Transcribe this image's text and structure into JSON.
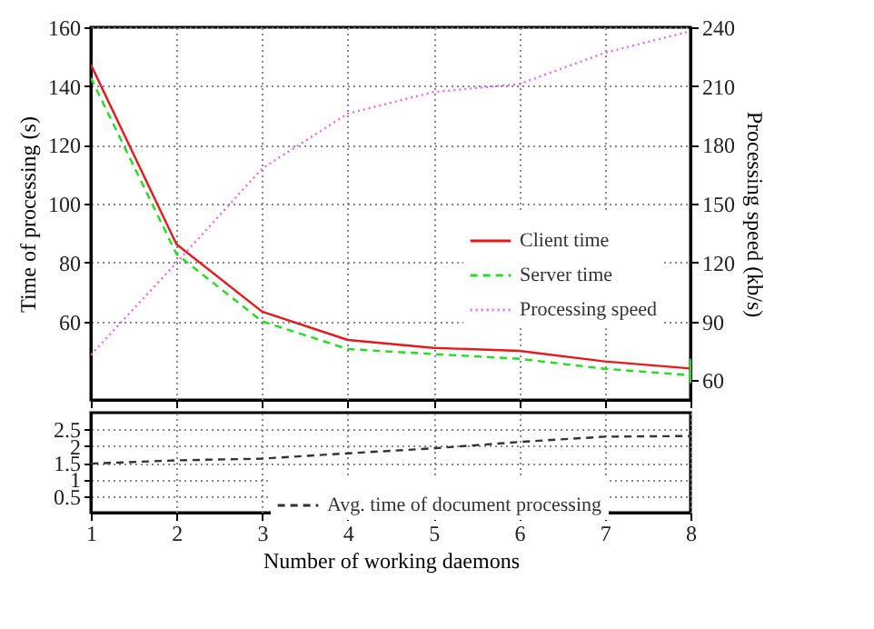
{
  "chart_data": [
    {
      "type": "line",
      "ylabel": "Time of processing (s)",
      "y2label": "Processing speed (kb/s)",
      "x": [
        1,
        2,
        3,
        4,
        5,
        6,
        7,
        8
      ],
      "xlim": [
        1,
        8
      ],
      "xticks": [
        1,
        2,
        3,
        4,
        5,
        6,
        7,
        8
      ],
      "ylim": [
        33.3,
        160
      ],
      "yticks": [
        60,
        80,
        100,
        120,
        140,
        160
      ],
      "y2lim": [
        50,
        240
      ],
      "y2ticks": [
        60,
        90,
        120,
        150,
        180,
        210,
        240
      ],
      "grid": true,
      "legend": "bottom right",
      "tick_labels": "y",
      "series": [
        {
          "name": "Client time",
          "color": "#e41a1c",
          "line_style": "solid",
          "values": [
            147.3,
            86.2,
            63.3,
            53.7,
            51,
            50,
            46.4,
            44
          ]
        },
        {
          "name": "Server time",
          "color": "#22dd22",
          "line_style": "dashed",
          "values": [
            142.8,
            82.9,
            60,
            50.6,
            48.9,
            47.3,
            43.9,
            41.7
          ],
          "errors": [
            null,
            null,
            null,
            null,
            null,
            null,
            null,
            [
              39,
              47.3
            ]
          ]
        },
        {
          "name": "Processing speed",
          "color": "#ee66ee",
          "line_style": "dotted",
          "axis": "y2",
          "values": [
            73,
            120,
            168,
            196,
            207,
            211,
            227,
            238
          ]
        }
      ]
    },
    {
      "type": "line",
      "xlabel": "Number of working daemons",
      "x": [
        1,
        2,
        3,
        4,
        5,
        6,
        7,
        8
      ],
      "xlim": [
        1,
        8
      ],
      "xticks": [
        1,
        2,
        3,
        4,
        5,
        6,
        7,
        8
      ],
      "ylim": [
        0,
        3
      ],
      "yticks": [
        0.5,
        1,
        1.5,
        2,
        2.5
      ],
      "grid": true,
      "legend": "bottom",
      "series": [
        {
          "name": "Avg. time of document processing",
          "color": "#333333",
          "line_style": "dashed",
          "values": [
            1.47,
            1.57,
            1.62,
            1.78,
            1.93,
            2.12,
            2.28,
            2.3
          ]
        }
      ]
    }
  ]
}
